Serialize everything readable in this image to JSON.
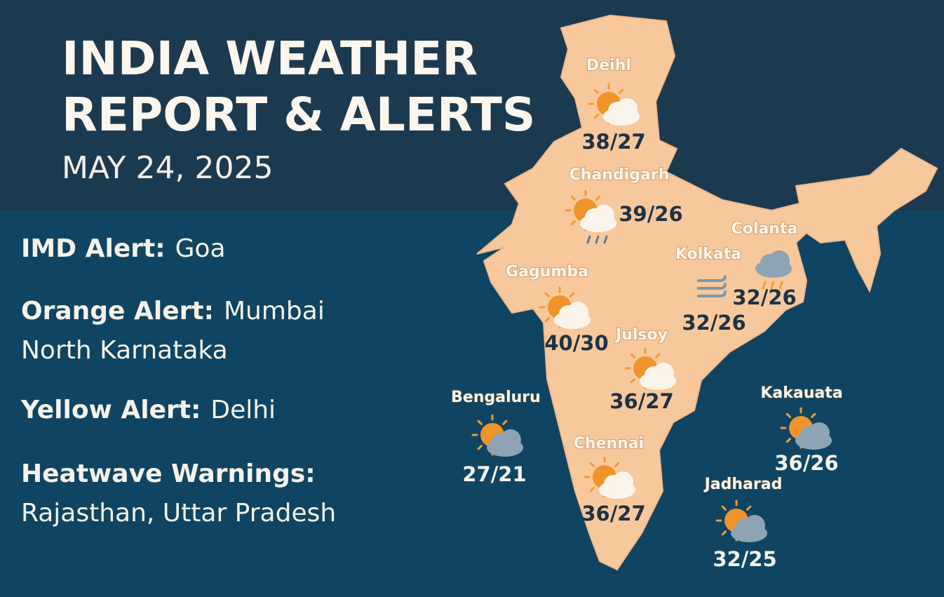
{
  "header": {
    "title": [
      "INDIA WEATHER",
      "REPORT & ALERTS"
    ],
    "date": "MAY 24, 2025"
  },
  "alerts": [
    {
      "label": "IMD Alert:",
      "lines": [
        "Goa"
      ]
    },
    {
      "label": "Orange Alert:",
      "lines": [
        "Mumbai",
        "North Karnataka"
      ]
    },
    {
      "label": "Yellow Alert:",
      "lines": [
        "Delhi"
      ]
    },
    {
      "label": "Heatwave Warnings:",
      "lines": [
        "Rajasthan, Uttar Pradesh"
      ]
    }
  ],
  "cities": [
    {
      "name": "Deihl",
      "temp": "38/27"
    },
    {
      "name": "Chandigarh",
      "temp": "39/26"
    },
    {
      "name": "Colanta",
      "temp": "32/26"
    },
    {
      "name": "Kolkata",
      "temp": "32/26"
    },
    {
      "name": "Gagumba",
      "temp": "40/30"
    },
    {
      "name": "Julsoy",
      "temp": "36/27"
    },
    {
      "name": "Bengaluru",
      "temp": "27/21"
    },
    {
      "name": "Chennai",
      "temp": "36/27"
    },
    {
      "name": "Kakauata",
      "temp": "36/26"
    },
    {
      "name": "Jadharad",
      "temp": "32/25"
    }
  ]
}
